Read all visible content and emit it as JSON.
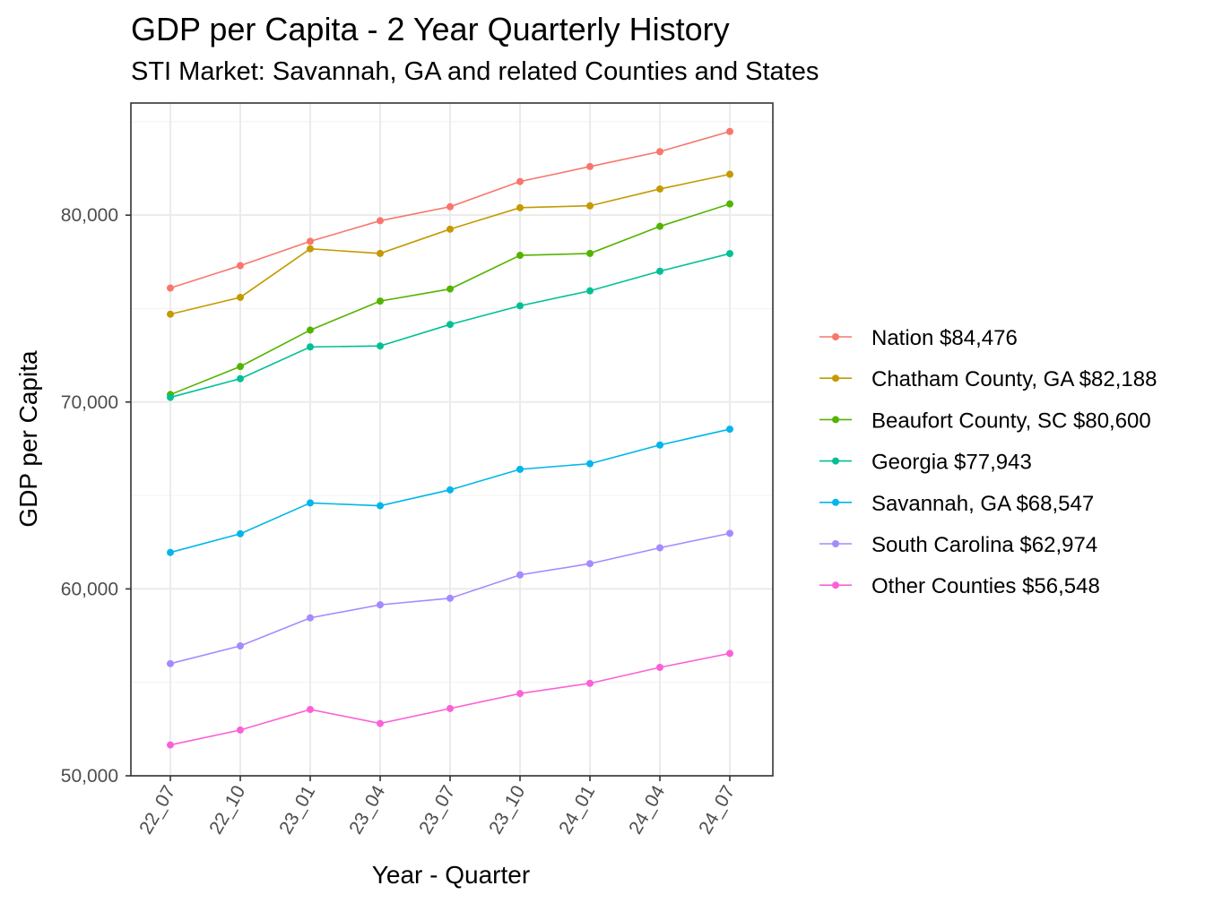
{
  "chart_data": {
    "type": "line",
    "title": "GDP per Capita - 2 Year Quarterly History",
    "subtitle": "STI Market: Savannah, GA and related Counties and States",
    "xlabel": "Year - Quarter",
    "ylabel": "GDP per Capita",
    "ylim": [
      50000,
      86000
    ],
    "yticks": [
      50000,
      60000,
      70000,
      80000
    ],
    "ytick_labels": [
      "50,000",
      "60,000",
      "70,000",
      "80,000"
    ],
    "categories": [
      "22_07",
      "22_10",
      "23_01",
      "23_04",
      "23_07",
      "23_10",
      "24_01",
      "24_04",
      "24_07"
    ],
    "grid": true,
    "legend_position": "right",
    "series": [
      {
        "name": "Nation $84,476",
        "color": "#F8766D",
        "values": [
          76100,
          77300,
          78600,
          79700,
          80450,
          81800,
          82600,
          83400,
          84476
        ]
      },
      {
        "name": "Chatham County, GA $82,188",
        "color": "#C49A00",
        "values": [
          74700,
          75600,
          78200,
          77950,
          79250,
          80400,
          80500,
          81400,
          82188
        ]
      },
      {
        "name": "Beaufort County, SC $80,600",
        "color": "#53B400",
        "values": [
          70400,
          71900,
          73850,
          75400,
          76050,
          77850,
          77950,
          79400,
          80600
        ]
      },
      {
        "name": "Georgia $77,943",
        "color": "#00C094",
        "values": [
          70250,
          71250,
          72950,
          73000,
          74150,
          75150,
          75950,
          77000,
          77943
        ]
      },
      {
        "name": "Savannah, GA $68,547",
        "color": "#00B6EB",
        "values": [
          61950,
          62950,
          64600,
          64450,
          65300,
          66400,
          66700,
          67700,
          68547
        ]
      },
      {
        "name": "South Carolina $62,974",
        "color": "#A58AFF",
        "values": [
          56000,
          56950,
          58450,
          59150,
          59500,
          60750,
          61350,
          62200,
          62974
        ]
      },
      {
        "name": "Other Counties $56,548",
        "color": "#FB61D7",
        "values": [
          51650,
          52450,
          53550,
          52800,
          53600,
          54400,
          54950,
          55800,
          56548
        ]
      }
    ]
  }
}
